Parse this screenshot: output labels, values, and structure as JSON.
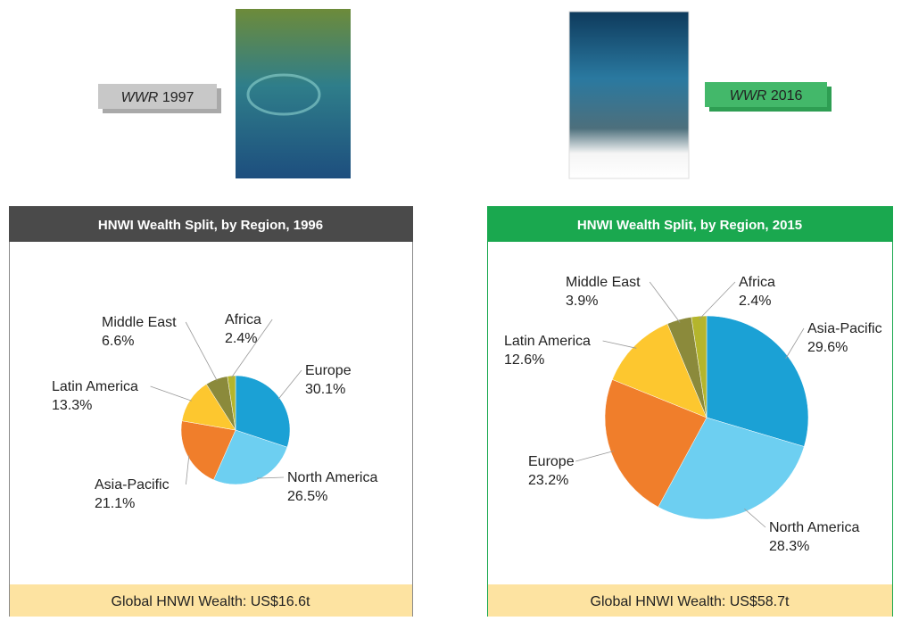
{
  "chart_data": [
    {
      "type": "pie",
      "title": "HNWI Wealth Split, by Region, 1996",
      "report": {
        "italic": "WWR",
        "year": "1997"
      },
      "annotation": "Global HNWI Wealth: US$16.6t",
      "header_color": "#4a4a4a",
      "categories": [
        "Europe",
        "North America",
        "Asia-Pacific",
        "Latin America",
        "Middle East",
        "Africa"
      ],
      "values": [
        30.1,
        26.5,
        21.1,
        13.3,
        6.6,
        2.4
      ],
      "value_labels": [
        "30.1%",
        "26.5%",
        "21.1%",
        "13.3%",
        "6.6%",
        "2.4%"
      ],
      "colors": [
        "#1ba1d5",
        "#6dcff1",
        "#f07e2b",
        "#fdc72f",
        "#8b8a3b",
        "#b4b52c"
      ]
    },
    {
      "type": "pie",
      "title": "HNWI Wealth Split, by Region, 2015",
      "report": {
        "italic": "WWR",
        "year": "2016"
      },
      "annotation": "Global HNWI Wealth: US$58.7t",
      "header_color": "#1aa84f",
      "categories": [
        "Asia-Pacific",
        "North America",
        "Europe",
        "Latin America",
        "Middle East",
        "Africa"
      ],
      "values": [
        29.6,
        28.3,
        23.2,
        12.6,
        3.9,
        2.4
      ],
      "value_labels": [
        "29.6%",
        "28.3%",
        "23.2%",
        "12.6%",
        "3.9%",
        "2.4%"
      ],
      "colors": [
        "#1ba1d5",
        "#6dcff1",
        "#f07e2b",
        "#fdc72f",
        "#8b8a3b",
        "#b4b52c"
      ]
    }
  ]
}
